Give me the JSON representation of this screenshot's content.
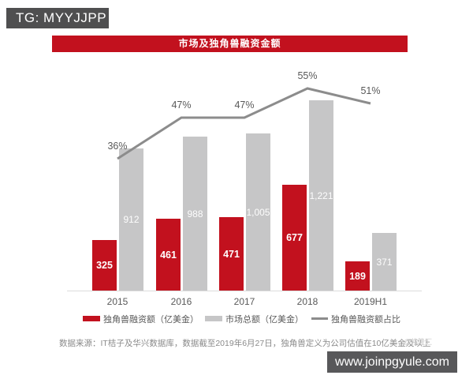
{
  "banner": {
    "title": "市场及独角兽融资金额"
  },
  "overlay_badges": {
    "tg_badge": "TG: MYYJJPP",
    "site_badge": "www.joinpgyule.com"
  },
  "legend": [
    {
      "label": "独角兽融资额（亿美金）",
      "swatch": "red-bar"
    },
    {
      "label": "市场总额（亿美金）",
      "swatch": "gray-bar"
    },
    {
      "label": "独角兽融资额占比",
      "swatch": "gray-line"
    }
  ],
  "footer": {
    "source_note": "数据来源：IT桔子及华兴数据库，数据截至2019年6月27日，独角兽定义为公司估值在10亿美金及以上",
    "watermark": "@格隆汇"
  },
  "colors": {
    "unicorn_red": "#C2111E",
    "market_gray": "#C6C6C7",
    "line_gray": "#8C8C8C",
    "axis_gray": "#DCDCDC",
    "tg_badge_bg": "#4F4F50",
    "site_badge_bg": "#58585A",
    "text_gray": "#595959",
    "footer_gray": "#8A8A8A",
    "watermark_gray": "#C9C9C9"
  },
  "chart_data": {
    "type": "bar",
    "subtype": "grouped-bars-with-percent-line",
    "title": "市场及独角兽融资金额",
    "categories": [
      "2015",
      "2016",
      "2017",
      "2018",
      "2019H1"
    ],
    "series": [
      {
        "name": "独角兽融资额（亿美金）",
        "type": "bar",
        "color": "#C2111E",
        "values": [
          325,
          461,
          471,
          677,
          189
        ],
        "labels": [
          "325",
          "461",
          "471",
          "677",
          "189"
        ]
      },
      {
        "name": "市场总额（亿美金）",
        "type": "bar",
        "color": "#C6C6C7",
        "values": [
          912,
          988,
          1005,
          1221,
          371
        ],
        "labels": [
          "912",
          "988",
          "1,005",
          "1,221",
          "371"
        ]
      },
      {
        "name": "独角兽融资额占比",
        "type": "line",
        "color": "#8C8C8C",
        "values": [
          36,
          47,
          47,
          55,
          51
        ],
        "labels": [
          "36%",
          "47%",
          "47%",
          "55%",
          "51%"
        ],
        "axis": "secondary-percent"
      }
    ],
    "value_axis": {
      "visible": false
    },
    "grid": false,
    "legend_position": "bottom",
    "data_labels": "inside-center"
  }
}
